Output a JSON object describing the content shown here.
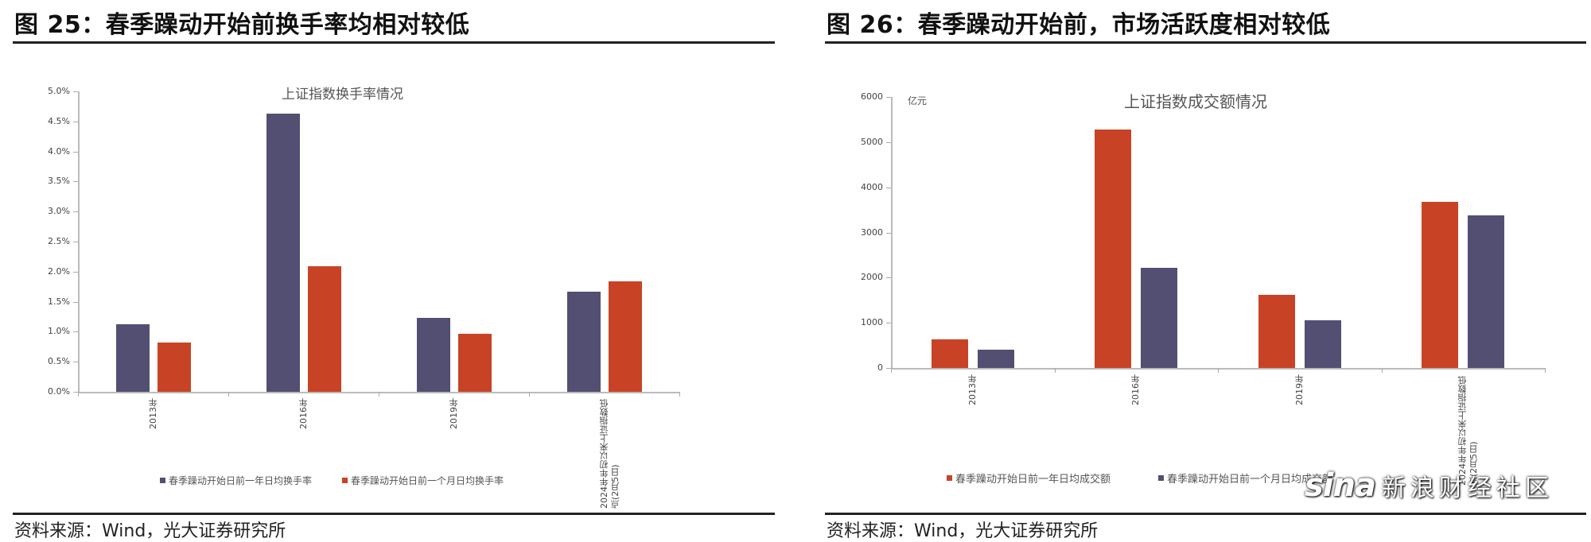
{
  "figures": [
    {
      "title": "图 25：春季躁动开始前换手率均相对较低",
      "chart_title": "上证指数换手率情况",
      "source": "资料来源：Wind，光大证券研究所"
    },
    {
      "title": "图 26：春季躁动开始前，市场活跃度相对较低",
      "chart_title": "上证指数成交额情况",
      "unit": "亿元",
      "source": "资料来源：Wind，光大证券研究所"
    }
  ],
  "colors": {
    "purple": "#534f72",
    "red": "#c84326"
  },
  "watermark": {
    "logo": "sina",
    "text": "新浪财经社区"
  },
  "chart_data": [
    {
      "type": "bar",
      "title": "上证指数换手率情况",
      "xlabel": "",
      "ylabel": "",
      "ylim": [
        0,
        5.0
      ],
      "yticks": [
        "0.0%",
        "0.5%",
        "1.0%",
        "1.5%",
        "2.0%",
        "2.5%",
        "3.0%",
        "3.5%",
        "4.0%",
        "4.5%",
        "5.0%"
      ],
      "categories": [
        "2013年",
        "2016年",
        "2019年",
        "2024年年初以来上证指数低点(2月5日)"
      ],
      "series": [
        {
          "name": "春季躁动开始日前一年日均换手率",
          "color": "#534f72",
          "values": [
            1.12,
            4.63,
            1.23,
            1.67
          ]
        },
        {
          "name": "春季躁动开始日前一个月日均换手率",
          "color": "#c84326",
          "values": [
            0.82,
            2.09,
            0.97,
            1.84
          ]
        }
      ],
      "unit": "%",
      "grid": false,
      "legend_position": "bottom"
    },
    {
      "type": "bar",
      "title": "上证指数成交额情况",
      "xlabel": "",
      "ylabel": "亿元",
      "ylim": [
        0,
        6000
      ],
      "yticks": [
        "0",
        "1000",
        "2000",
        "3000",
        "4000",
        "5000",
        "6000"
      ],
      "categories": [
        "2013年",
        "2016年",
        "2019年",
        "2024年年初以来上证指数低点(2月5日)"
      ],
      "series": [
        {
          "name": "春季躁动开始日前一年日均成交额",
          "color": "#c84326",
          "values": [
            633,
            5279,
            1619,
            3677
          ]
        },
        {
          "name": "春季躁动开始日前一个月日均成交额",
          "color": "#534f72",
          "values": [
            405,
            2217,
            1056,
            3378
          ]
        }
      ],
      "grid": false,
      "legend_position": "bottom"
    }
  ]
}
